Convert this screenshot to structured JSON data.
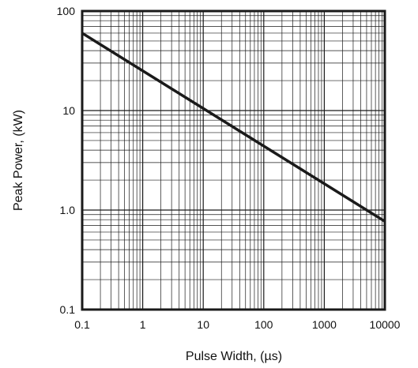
{
  "chart_data": {
    "type": "line",
    "x_scale": "log",
    "y_scale": "log",
    "xlim": [
      0.1,
      10000
    ],
    "ylim": [
      0.1,
      100
    ],
    "grid": true,
    "xlabel": "Pulse Width, (µs)",
    "ylabel": "Peak Power, (kW)",
    "x_ticks": [
      "0.1",
      "1",
      "10",
      "100",
      "1000",
      "10000"
    ],
    "y_ticks": [
      "0.1",
      "1.0",
      "10",
      "100"
    ],
    "series": [
      {
        "x": [
          0.1,
          10000
        ],
        "y": [
          60,
          0.77
        ],
        "color": "#1a1a1a"
      }
    ]
  }
}
